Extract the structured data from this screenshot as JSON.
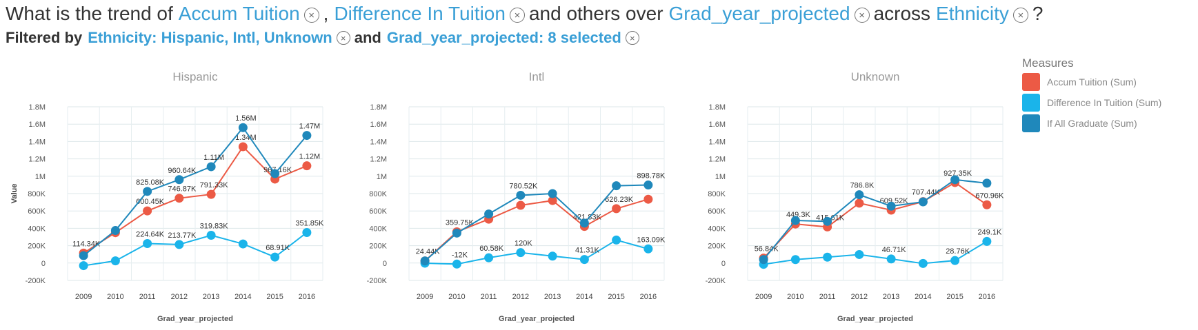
{
  "question": {
    "prefix": "What is the trend of",
    "measure1": "Accum Tuition",
    "comma": ",",
    "measure2": "Difference In Tuition",
    "middle": "and others over",
    "dimension": "Grad_year_projected",
    "across_text": "across",
    "group": "Ethnicity",
    "suffix": "?"
  },
  "filters": {
    "prefix": "Filtered by",
    "filter1": "Ethnicity: Hispanic, Intl, Unknown",
    "and_text": "and",
    "filter2": "Grad_year_projected: 8 selected"
  },
  "icons": {
    "remove": "close-circle-icon"
  },
  "legend": {
    "title": "Measures",
    "items": [
      {
        "label": "Accum Tuition (Sum)",
        "color": "#ec5a45"
      },
      {
        "label": "Difference In Tuition (Sum)",
        "color": "#1ab4ea"
      },
      {
        "label": "If All Graduate (Sum)",
        "color": "#1f88bb"
      }
    ]
  },
  "chart_data": [
    {
      "type": "line",
      "title": "Hispanic",
      "xlabel": "Grad_year_projected",
      "ylabel": "Value",
      "ylim": [
        -200000,
        1800000
      ],
      "yticks": [
        "-200K",
        "0",
        "200K",
        "400K",
        "600K",
        "800K",
        "1M",
        "1.2M",
        "1.4M",
        "1.6M",
        "1.8M"
      ],
      "categories": [
        "2009",
        "2010",
        "2011",
        "2012",
        "2013",
        "2014",
        "2015",
        "2016"
      ],
      "series": [
        {
          "name": "Accum Tuition (Sum)",
          "values": [
            114340,
            350000,
            600450,
            746870,
            791330,
            1340000,
            967160,
            1120000
          ],
          "labels": [
            "114.34K",
            "",
            "600.45K",
            "746.87K",
            "791.33K",
            "1.34M",
            "967.16K",
            "1.12M"
          ]
        },
        {
          "name": "Difference In Tuition (Sum)",
          "values": [
            -30000,
            25000,
            224640,
            213770,
            319830,
            220000,
            68910,
            351850
          ],
          "labels": [
            "",
            "",
            "224.64K",
            "213.77K",
            "319.83K",
            "",
            "68.91K",
            "351.85K"
          ]
        },
        {
          "name": "If All Graduate (Sum)",
          "values": [
            85000,
            375000,
            825080,
            960640,
            1110000,
            1560000,
            1030000,
            1470000
          ],
          "labels": [
            "",
            "",
            "825.08K",
            "960.64K",
            "1.11M",
            "1.56M",
            "",
            "1.47M"
          ]
        }
      ]
    },
    {
      "type": "line",
      "title": "Intl",
      "xlabel": "Grad_year_projected",
      "ylabel": "Value",
      "ylim": [
        -200000,
        1800000
      ],
      "yticks": [
        "-200K",
        "0",
        "200K",
        "400K",
        "600K",
        "800K",
        "1M",
        "1.2M",
        "1.4M",
        "1.6M",
        "1.8M"
      ],
      "categories": [
        "2009",
        "2010",
        "2011",
        "2012",
        "2013",
        "2014",
        "2015",
        "2016"
      ],
      "series": [
        {
          "name": "Accum Tuition (Sum)",
          "values": [
            24440,
            359750,
            505000,
            665000,
            720000,
            421830,
            626230,
            735000
          ],
          "labels": [
            "24.44K",
            "359.75K",
            "",
            "",
            "",
            "421.83K",
            "626.23K",
            ""
          ]
        },
        {
          "name": "Difference In Tuition (Sum)",
          "values": [
            -2000,
            -12000,
            60580,
            120000,
            80000,
            41310,
            265000,
            163090
          ],
          "labels": [
            "",
            "-12K",
            "60.58K",
            "120K",
            "",
            "41.31K",
            "",
            "163.09K"
          ]
        },
        {
          "name": "If All Graduate (Sum)",
          "values": [
            24000,
            345000,
            565000,
            780520,
            800000,
            460000,
            890000,
            898780
          ],
          "labels": [
            "",
            "",
            "",
            "780.52K",
            "",
            "",
            "",
            "898.78K"
          ]
        }
      ]
    },
    {
      "type": "line",
      "title": "Unknown",
      "xlabel": "Grad_year_projected",
      "ylabel": "Value",
      "ylim": [
        -200000,
        1800000
      ],
      "yticks": [
        "-200K",
        "0",
        "200K",
        "400K",
        "600K",
        "800K",
        "1M",
        "1.2M",
        "1.4M",
        "1.6M",
        "1.8M"
      ],
      "categories": [
        "2009",
        "2010",
        "2011",
        "2012",
        "2013",
        "2014",
        "2015",
        "2016"
      ],
      "series": [
        {
          "name": "Accum Tuition (Sum)",
          "values": [
            56840,
            449300,
            415610,
            690000,
            609520,
            707440,
            927350,
            670960
          ],
          "labels": [
            "56.84K",
            "449.3K",
            "415.61K",
            "",
            "609.52K",
            "707.44K",
            "927.35K",
            "670.96K"
          ]
        },
        {
          "name": "Difference In Tuition (Sum)",
          "values": [
            -15000,
            40000,
            68000,
            98000,
            46710,
            -5000,
            28760,
            249100
          ],
          "labels": [
            "",
            "",
            "",
            "",
            "46.71K",
            "",
            "28.76K",
            "249.1K"
          ]
        },
        {
          "name": "If All Graduate (Sum)",
          "values": [
            40000,
            490000,
            480000,
            786800,
            655000,
            705000,
            960000,
            920000
          ],
          "labels": [
            "",
            "",
            "",
            "786.8K",
            "",
            "",
            "",
            ""
          ]
        }
      ]
    }
  ]
}
